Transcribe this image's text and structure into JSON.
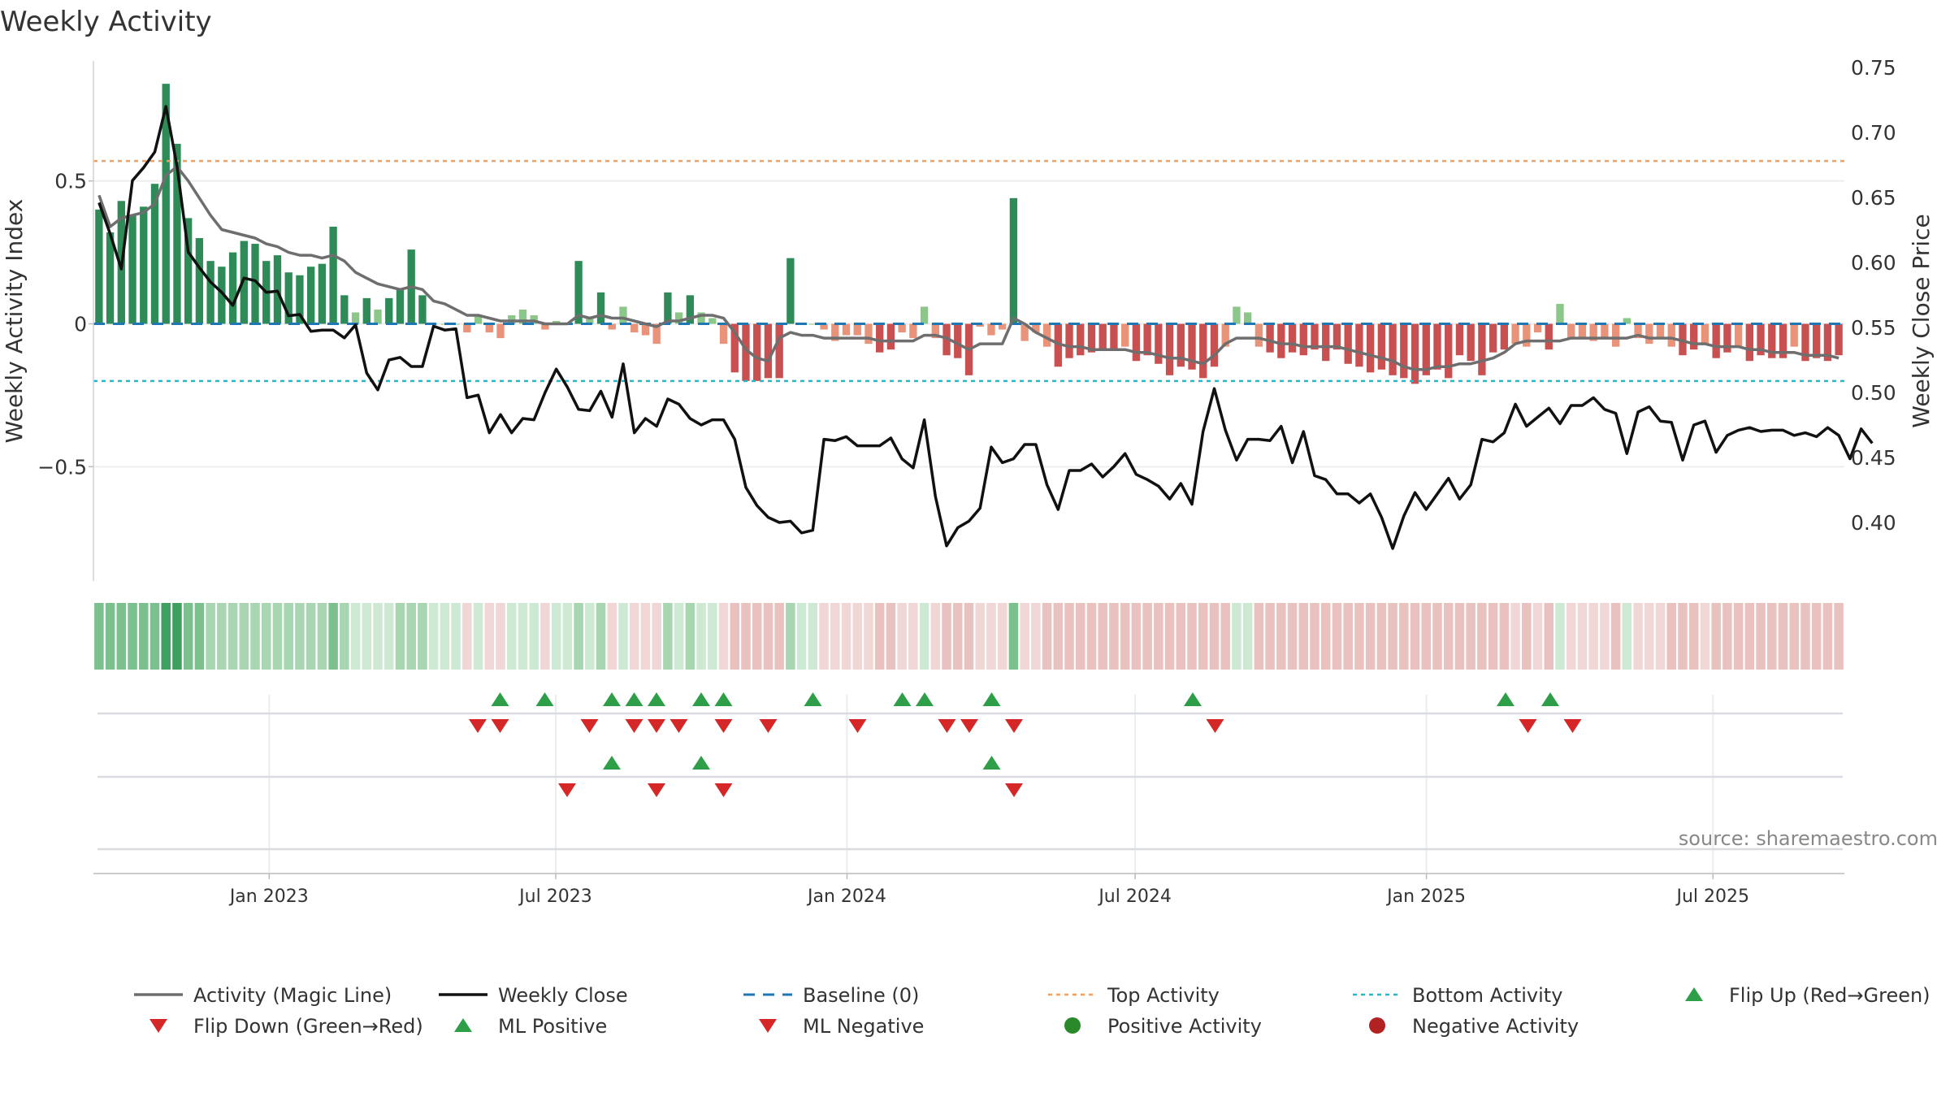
{
  "chart_data": {
    "type": "bar",
    "title": "Weekly Activity",
    "ylabel": "Weekly Activity Index",
    "y2label": "Weekly Close Price",
    "ylim": [
      -0.9,
      0.92
    ],
    "y2lim": [
      0.355,
      0.755
    ],
    "yticks": [
      -0.5,
      0,
      0.5
    ],
    "ytick_labels": [
      "−0.5",
      "0",
      "0.5"
    ],
    "y2ticks": [
      0.4,
      0.45,
      0.5,
      0.55,
      0.6,
      0.65,
      0.7,
      0.75
    ],
    "y2tick_labels": [
      "0.40",
      "0.45",
      "0.50",
      "0.55",
      "0.60",
      "0.65",
      "0.70",
      "0.75"
    ],
    "x_start": "2022-09-12",
    "x_end": "2025-09-22",
    "xticks": [
      "2023-01-01",
      "2023-07-01",
      "2024-01-01",
      "2024-07-01",
      "2025-01-01",
      "2025-07-01"
    ],
    "xtick_labels": [
      "Jan 2023",
      "Jul 2023",
      "Jan 2024",
      "Jul 2024",
      "Jan 2025",
      "Jul 2025"
    ],
    "top_activity": 0.57,
    "bottom_activity": -0.2,
    "activity": [
      0.4,
      0.32,
      0.43,
      0.38,
      0.41,
      0.49,
      0.84,
      0.63,
      0.37,
      0.3,
      0.22,
      0.2,
      0.25,
      0.29,
      0.28,
      0.22,
      0.24,
      0.18,
      0.17,
      0.2,
      0.21,
      0.34,
      0.1,
      0.04,
      0.09,
      0.05,
      0.09,
      0.12,
      0.26,
      0.1,
      0.0,
      0.0,
      0.0,
      -0.03,
      0.03,
      -0.03,
      -0.05,
      0.03,
      0.05,
      0.03,
      -0.02,
      0.01,
      0.0,
      0.22,
      0.02,
      0.11,
      -0.02,
      0.06,
      -0.03,
      -0.04,
      -0.07,
      0.11,
      0.04,
      0.1,
      0.04,
      0.02,
      -0.07,
      -0.17,
      -0.2,
      -0.2,
      -0.19,
      -0.19,
      0.23,
      0.0,
      0.0,
      -0.02,
      -0.06,
      -0.04,
      -0.04,
      -0.07,
      -0.1,
      -0.09,
      -0.03,
      -0.05,
      0.06,
      -0.05,
      -0.11,
      -0.12,
      -0.18,
      -0.01,
      -0.04,
      -0.02,
      0.44,
      -0.06,
      -0.03,
      -0.08,
      -0.15,
      -0.12,
      -0.11,
      -0.1,
      -0.09,
      -0.09,
      -0.08,
      -0.13,
      -0.11,
      -0.14,
      -0.18,
      -0.15,
      -0.16,
      -0.19,
      -0.15,
      -0.08,
      0.06,
      0.04,
      -0.08,
      -0.1,
      -0.12,
      -0.1,
      -0.11,
      -0.09,
      -0.13,
      -0.09,
      -0.14,
      -0.15,
      -0.17,
      -0.16,
      -0.18,
      -0.19,
      -0.21,
      -0.18,
      -0.16,
      -0.19,
      -0.11,
      -0.13,
      -0.18,
      -0.1,
      -0.09,
      -0.07,
      -0.08,
      -0.03,
      -0.09,
      0.07,
      -0.05,
      -0.05,
      -0.06,
      -0.05,
      -0.08,
      0.02,
      -0.05,
      -0.07,
      -0.05,
      -0.08,
      -0.11,
      -0.09,
      -0.07,
      -0.12,
      -0.1,
      -0.08,
      -0.13,
      -0.11,
      -0.12,
      -0.12,
      -0.08,
      -0.13,
      -0.12,
      -0.13,
      -0.11
    ],
    "magic_line": [
      0.45,
      0.34,
      0.37,
      0.38,
      0.39,
      0.42,
      0.52,
      0.55,
      0.5,
      0.44,
      0.38,
      0.33,
      0.32,
      0.31,
      0.3,
      0.28,
      0.27,
      0.25,
      0.24,
      0.24,
      0.23,
      0.24,
      0.22,
      0.18,
      0.16,
      0.14,
      0.13,
      0.12,
      0.13,
      0.12,
      0.08,
      0.07,
      0.05,
      0.03,
      0.03,
      0.02,
      0.01,
      0.01,
      0.01,
      0.01,
      0.0,
      0.0,
      0.0,
      0.03,
      0.02,
      0.03,
      0.02,
      0.02,
      0.01,
      0.0,
      -0.01,
      0.01,
      0.01,
      0.02,
      0.03,
      0.03,
      0.02,
      -0.03,
      -0.09,
      -0.12,
      -0.13,
      -0.05,
      -0.03,
      -0.04,
      -0.04,
      -0.05,
      -0.05,
      -0.05,
      -0.05,
      -0.05,
      -0.06,
      -0.06,
      -0.06,
      -0.06,
      -0.04,
      -0.04,
      -0.05,
      -0.07,
      -0.09,
      -0.07,
      -0.07,
      -0.07,
      0.02,
      0.0,
      -0.03,
      -0.05,
      -0.07,
      -0.08,
      -0.08,
      -0.09,
      -0.09,
      -0.09,
      -0.09,
      -0.1,
      -0.1,
      -0.11,
      -0.12,
      -0.12,
      -0.13,
      -0.14,
      -0.11,
      -0.07,
      -0.05,
      -0.05,
      -0.05,
      -0.06,
      -0.07,
      -0.07,
      -0.08,
      -0.08,
      -0.08,
      -0.08,
      -0.09,
      -0.1,
      -0.11,
      -0.12,
      -0.13,
      -0.15,
      -0.16,
      -0.16,
      -0.15,
      -0.15,
      -0.14,
      -0.14,
      -0.13,
      -0.12,
      -0.1,
      -0.07,
      -0.06,
      -0.06,
      -0.06,
      -0.06,
      -0.05,
      -0.05,
      -0.05,
      -0.05,
      -0.05,
      -0.05,
      -0.04,
      -0.05,
      -0.05,
      -0.05,
      -0.06,
      -0.07,
      -0.07,
      -0.08,
      -0.08,
      -0.08,
      -0.09,
      -0.09,
      -0.1,
      -0.1,
      -0.1,
      -0.11,
      -0.11,
      -0.11,
      -0.12
    ],
    "weekly_close": [
      0.646,
      0.622,
      0.595,
      0.663,
      0.673,
      0.685,
      0.72,
      0.674,
      0.608,
      0.596,
      0.585,
      0.577,
      0.567,
      0.588,
      0.586,
      0.577,
      0.578,
      0.559,
      0.56,
      0.547,
      0.548,
      0.548,
      0.542,
      0.552,
      0.515,
      0.502,
      0.525,
      0.527,
      0.52,
      0.52,
      0.551,
      0.548,
      0.549,
      0.496,
      0.498,
      0.469,
      0.483,
      0.469,
      0.48,
      0.479,
      0.5,
      0.518,
      0.504,
      0.487,
      0.486,
      0.501,
      0.481,
      0.522,
      0.469,
      0.48,
      0.474,
      0.495,
      0.491,
      0.48,
      0.475,
      0.479,
      0.479,
      0.464,
      0.427,
      0.413,
      0.404,
      0.4,
      0.401,
      0.392,
      0.394,
      0.464,
      0.463,
      0.466,
      0.459,
      0.459,
      0.459,
      0.465,
      0.449,
      0.442,
      0.479,
      0.42,
      0.382,
      0.396,
      0.401,
      0.411,
      0.458,
      0.446,
      0.449,
      0.46,
      0.46,
      0.429,
      0.41,
      0.44,
      0.44,
      0.445,
      0.435,
      0.443,
      0.453,
      0.437,
      0.433,
      0.428,
      0.418,
      0.43,
      0.414,
      0.47,
      0.503,
      0.471,
      0.448,
      0.464,
      0.464,
      0.463,
      0.474,
      0.446,
      0.47,
      0.436,
      0.433,
      0.422,
      0.422,
      0.415,
      0.422,
      0.404,
      0.38,
      0.405,
      0.423,
      0.41,
      0.422,
      0.434,
      0.418,
      0.429,
      0.464,
      0.462,
      0.469,
      0.491,
      0.474,
      0.481,
      0.488,
      0.476,
      0.49,
      0.49,
      0.496,
      0.487,
      0.484,
      0.453,
      0.485,
      0.489,
      0.478,
      0.477,
      0.448,
      0.475,
      0.478,
      0.454,
      0.467,
      0.471,
      0.473,
      0.47,
      0.471,
      0.471,
      0.467,
      0.469,
      0.466,
      0.473,
      0.467,
      0.449,
      0.472,
      0.461
    ],
    "strip_flip": {
      "up": [
        17,
        19,
        22,
        23,
        24,
        26,
        27,
        31,
        35,
        36,
        39,
        48,
        62,
        64
      ],
      "down": [
        16,
        17,
        21,
        23,
        24,
        25,
        27,
        29,
        33,
        37,
        38,
        40,
        49,
        63,
        65
      ]
    },
    "strip_ml": {
      "up": [
        22,
        26,
        39
      ],
      "down": [
        20,
        24,
        27,
        40
      ]
    },
    "heat_colors": {
      "green_dark": "#3da05e",
      "green_mid": "#7dc08f",
      "green_light": "#a7d6b1",
      "green_pale": "#cde9d3",
      "red_light": "#e9c2c0",
      "red_pale": "#f0d7d5"
    },
    "legend": [
      {
        "key": "magic",
        "label": "Activity (Magic Line)"
      },
      {
        "key": "close",
        "label": "Weekly Close"
      },
      {
        "key": "baseline",
        "label": "Baseline (0)"
      },
      {
        "key": "top",
        "label": "Top Activity"
      },
      {
        "key": "bottom",
        "label": "Bottom Activity"
      },
      {
        "key": "flipup",
        "label": "Flip Up (Red→Green)"
      },
      {
        "key": "flipdown",
        "label": "Flip Down (Green→Red)"
      },
      {
        "key": "mlpos",
        "label": "ML Positive"
      },
      {
        "key": "mlneg",
        "label": "ML Negative"
      },
      {
        "key": "posact",
        "label": "Positive Activity"
      },
      {
        "key": "negact",
        "label": "Negative Activity"
      }
    ],
    "source_text": "source: sharemaestro.com"
  },
  "colors": {
    "bar_green_dark": "#2e8b57",
    "bar_green_light": "#8cc78a",
    "bar_red_dark": "#c95050",
    "bar_red_light": "#e8937a",
    "magic_line": "#6e6e6e",
    "weekly_close": "#111111",
    "baseline": "#1f77b4",
    "top_activity": "#f0a060",
    "bottom_activity": "#17becf",
    "marker_green": "#2e9e48",
    "marker_red": "#d62728",
    "positive_dot": "#2a8a2a",
    "negative_dot": "#b22222"
  }
}
